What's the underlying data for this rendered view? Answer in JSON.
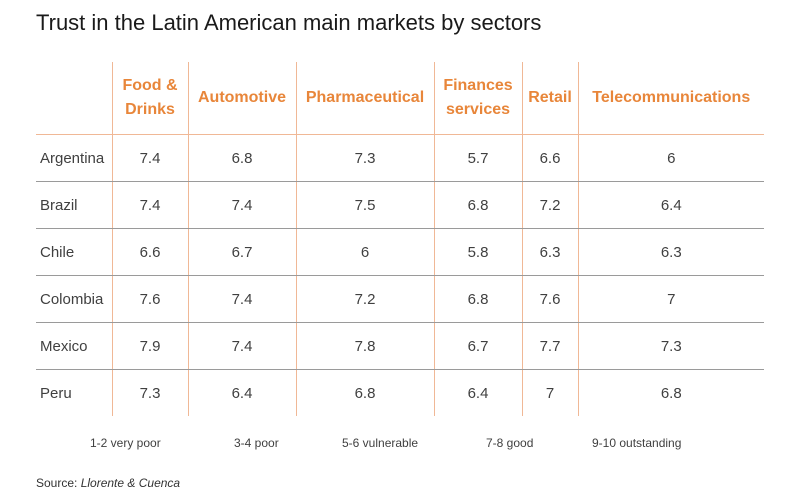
{
  "chart_data": {
    "type": "table",
    "title": "Trust in the Latin American main markets by sectors",
    "columns": [
      "Food & Drinks",
      "Automotive",
      "Pharmaceutical",
      "Finances services",
      "Retail",
      "Telecommunications"
    ],
    "rows": [
      {
        "country": "Argentina",
        "values": [
          "7.4",
          "6.8",
          "7.3",
          "5.7",
          "6.6",
          "6"
        ]
      },
      {
        "country": "Brazil",
        "values": [
          "7.4",
          "7.4",
          "7.5",
          "6.8",
          "7.2",
          "6.4"
        ]
      },
      {
        "country": "Chile",
        "values": [
          "6.6",
          "6.7",
          "6",
          "5.8",
          "6.3",
          "6.3"
        ]
      },
      {
        "country": "Colombia",
        "values": [
          "7.6",
          "7.4",
          "7.2",
          "6.8",
          "7.6",
          "7"
        ]
      },
      {
        "country": "Mexico",
        "values": [
          "7.9",
          "7.4",
          "7.8",
          "6.7",
          "7.7",
          "7.3"
        ]
      },
      {
        "country": "Peru",
        "values": [
          "7.3",
          "6.4",
          "6.8",
          "6.4",
          "7",
          "6.8"
        ]
      }
    ],
    "legend": [
      "1-2 very poor",
      "3-4 poor",
      "5-6 vulnerable",
      "7-8 good",
      "9-10 outstanding"
    ],
    "source_label": "Source:",
    "source_name": "Llorente & Cuenca"
  },
  "colors": {
    "header_text": "#e8863a",
    "separator": "#f0b896",
    "row_divider": "#9a9a9a"
  }
}
